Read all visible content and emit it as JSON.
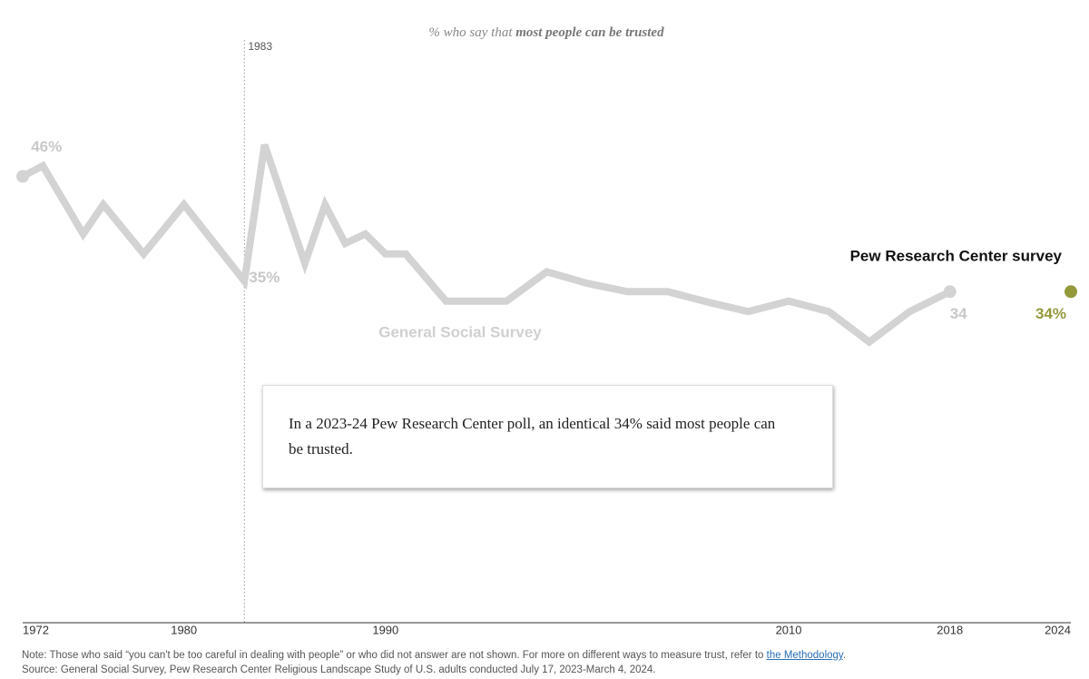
{
  "chart_data": {
    "type": "line",
    "subtitle": {
      "text": "% who say that",
      "emphasis": "most people can be trusted"
    },
    "series": [
      {
        "name": "General Social Survey",
        "color": "#d3d3d4",
        "x": [
          1972,
          1973,
          1975,
          1976,
          1978,
          1980,
          1983,
          1984,
          1986,
          1987,
          1988,
          1989,
          1990,
          1991,
          1993,
          1994,
          1996,
          1998,
          2000,
          2002,
          2004,
          2006,
          2008,
          2010,
          2012,
          2014,
          2016,
          2018
        ],
        "values": [
          45,
          46,
          39.5,
          42.3,
          37.6,
          42.3,
          35,
          48,
          36.7,
          42.3,
          38.6,
          39.5,
          37.6,
          37.6,
          33.1,
          33.1,
          33.1,
          35.9,
          34.8,
          34,
          34,
          33,
          32.1,
          33.1,
          32.1,
          29.2,
          32.1,
          34
        ],
        "value_labels": [
          null,
          "46%",
          null,
          null,
          null,
          null,
          "35%",
          null,
          null,
          null,
          null,
          null,
          null,
          null,
          null,
          null,
          null,
          null,
          null,
          null,
          null,
          null,
          null,
          null,
          null,
          null,
          null,
          "34"
        ]
      },
      {
        "name": "Pew Research Center survey",
        "color": "#949a3c",
        "x": [
          2024
        ],
        "values": [
          34
        ],
        "value_labels": [
          "34%"
        ]
      }
    ],
    "xlim": [
      1972,
      2024
    ],
    "xticks": [
      1972,
      1980,
      1990,
      2010,
      2018,
      2024
    ],
    "ylim": [
      0,
      60
    ],
    "reference_line_x": 1983,
    "callout": "In a 2023-24 Pew Research Center poll, an identical 34% said most people can be trusted.",
    "note": {
      "text": "Note: Those who said “you can't be too careful in dealing with people” or who did not answer are not shown. For more on different ways to measure trust, refer to",
      "link": "the Methodology",
      "end": "."
    },
    "source": "Source: General Social Survey, Pew Research Center Religious Landscape Study of U.S. adults conducted July 17, 2023-March 4, 2024."
  }
}
